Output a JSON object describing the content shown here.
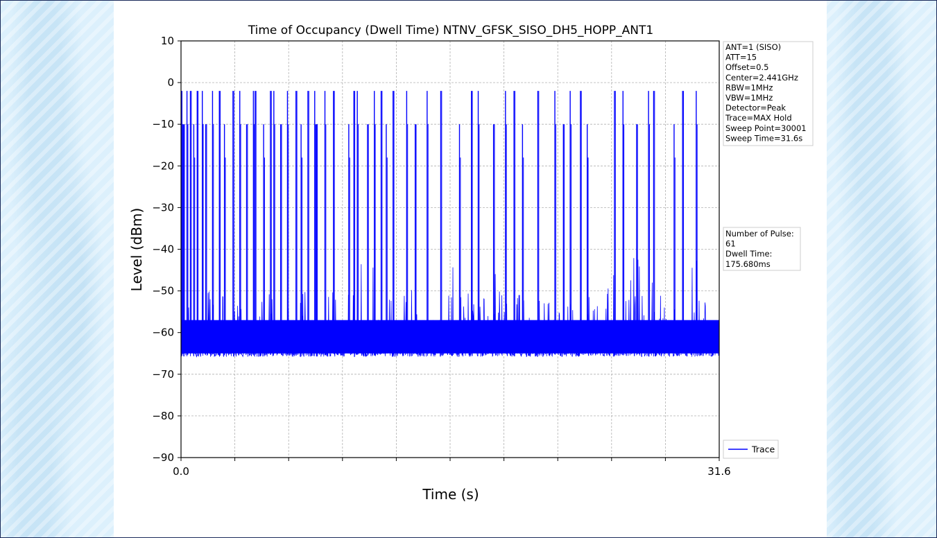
{
  "chart_data": {
    "type": "line",
    "title": "Time of Occupancy (Dwell Time) NTNV_GFSK_SISO_DH5_HOPP_ANT1",
    "xlabel": "Time (s)",
    "ylabel": "Level (dBm)",
    "xlim": [
      0.0,
      31.6
    ],
    "ylim": [
      -90,
      10
    ],
    "x_tick_labels": [
      "0.0",
      "31.6"
    ],
    "y_ticks": [
      10,
      0,
      -10,
      -20,
      -30,
      -40,
      -50,
      -60,
      -70,
      -80,
      -90
    ],
    "y_tick_labels": [
      "10",
      "0",
      "−10",
      "−20",
      "−30",
      "−40",
      "−50",
      "−60",
      "−70",
      "−80",
      "−90"
    ],
    "grid": true,
    "legend": {
      "placement": "lower-right",
      "entries": [
        "Trace"
      ]
    },
    "series": [
      {
        "name": "Trace",
        "color": "#0000ff",
        "noise_floor_dbm": -65,
        "noise_ceiling_dbm": -57,
        "peak_levels_dbm": [
          -2,
          -10
        ],
        "pulse_times_s": [
          0.05,
          0.15,
          0.35,
          0.55,
          0.75,
          0.95,
          1.25,
          1.45,
          1.85,
          2.25,
          2.55,
          3.05,
          3.45,
          3.85,
          4.25,
          4.35,
          4.85,
          5.25,
          5.45,
          5.85,
          6.25,
          6.75,
          7.05,
          7.45,
          7.85,
          7.95,
          8.45,
          8.95,
          9.85,
          10.15,
          10.35,
          10.95,
          11.35,
          11.75,
          12.05,
          12.45,
          13.25,
          13.75,
          14.45,
          15.25,
          16.35,
          17.05,
          17.45,
          18.35,
          19.05,
          19.55,
          20.05,
          20.95,
          21.95,
          22.45,
          22.85,
          23.45,
          23.85,
          25.45,
          25.95,
          26.75,
          27.45,
          27.75,
          28.95,
          29.45,
          30.25
        ]
      }
    ],
    "annotations": {
      "settings": [
        "ANT=1 (SISO)",
        "ATT=15",
        "Offset=0.5",
        "Center=2.441GHz",
        "RBW=1MHz",
        "VBW=1MHz",
        "Detector=Peak",
        "Trace=MAX Hold",
        "Sweep Point=30001",
        "Sweep Time=31.6s"
      ],
      "results": [
        "Number of Pulse:",
        "61",
        "Dwell Time:",
        "175.680ms"
      ]
    }
  }
}
